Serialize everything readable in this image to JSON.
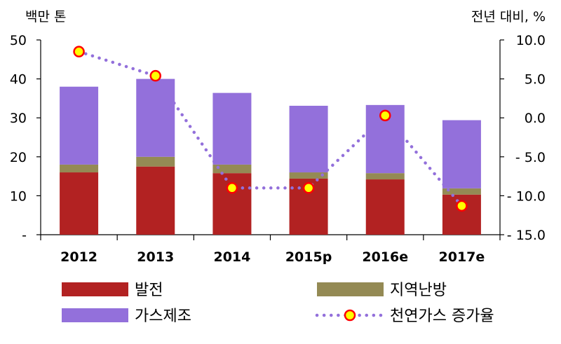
{
  "chart_data": {
    "type": "bar",
    "stacked": true,
    "categories": [
      "2012",
      "2013",
      "2014",
      "2015p",
      "2016e",
      "2017e"
    ],
    "y_left": {
      "unit_label": "백만 톤",
      "ylim": [
        0,
        50
      ],
      "ticks": [
        "-",
        "10",
        "20",
        "30",
        "40",
        "50"
      ]
    },
    "y_right": {
      "unit_label": "전년 대비, %",
      "ylim": [
        -15,
        10
      ],
      "ticks": [
        "- 15.0",
        "- 10.0",
        "- 5.0",
        "0.0",
        "5.0",
        "10.0"
      ]
    },
    "series": [
      {
        "name": "발전",
        "kind": "bar",
        "axis": "left",
        "color": "#b22222",
        "values": [
          16.0,
          17.5,
          15.8,
          14.4,
          14.2,
          10.3
        ]
      },
      {
        "name": "지역난방",
        "kind": "bar",
        "axis": "left",
        "color": "#948a54",
        "values": [
          2.0,
          2.5,
          2.2,
          1.6,
          1.6,
          1.6
        ]
      },
      {
        "name": "가스제조",
        "kind": "bar",
        "axis": "left",
        "color": "#9370db",
        "values": [
          20.0,
          20.0,
          18.4,
          17.1,
          17.5,
          17.5
        ]
      },
      {
        "name": "천연가스 증가율",
        "kind": "line",
        "axis": "right",
        "color": "#9370db",
        "marker_color": "#ffff00",
        "marker_edge": "#ff0000",
        "values": [
          8.5,
          5.4,
          -9.0,
          -9.0,
          0.3,
          -11.3
        ]
      }
    ],
    "legend_position": "bottom",
    "grid": false
  }
}
